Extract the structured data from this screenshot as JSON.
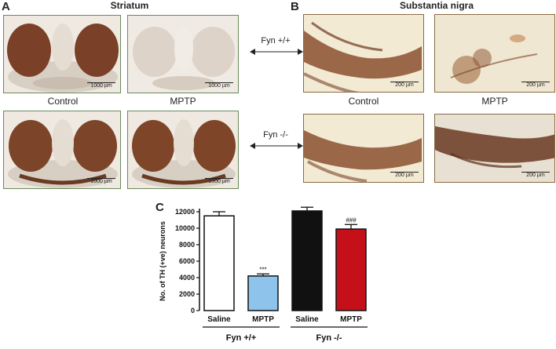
{
  "panel_a": {
    "letter": "A",
    "title": "Striatum",
    "control_label": "Control",
    "mptp_label": "MPTP",
    "scale_label": "1000 µm"
  },
  "panel_b": {
    "letter": "B",
    "title": "Substantia nigra",
    "control_label": "Control",
    "mptp_label": "MPTP",
    "scale_label": "200 µm"
  },
  "genotypes": {
    "wt": "Fyn +/+",
    "ko": "Fyn -/-"
  },
  "panel_c": {
    "letter": "C"
  },
  "chart_data": {
    "type": "bar",
    "categories": [
      "Saline",
      "MPTP",
      "Saline",
      "MPTP"
    ],
    "groups": [
      "Fyn +/+",
      "Fyn -/-"
    ],
    "values": [
      11500,
      4200,
      12100,
      9900
    ],
    "errors": [
      500,
      250,
      450,
      550
    ],
    "colors": [
      "#ffffff",
      "#8ec4ec",
      "#111111",
      "#c5101a"
    ],
    "annotations": [
      "",
      "***",
      "",
      "###"
    ],
    "ylabel": "No. of TH (+ve) neurons",
    "ylim": [
      0,
      12000
    ],
    "yticks": [
      0,
      2000,
      4000,
      6000,
      8000,
      10000,
      12000
    ],
    "grid": false
  }
}
